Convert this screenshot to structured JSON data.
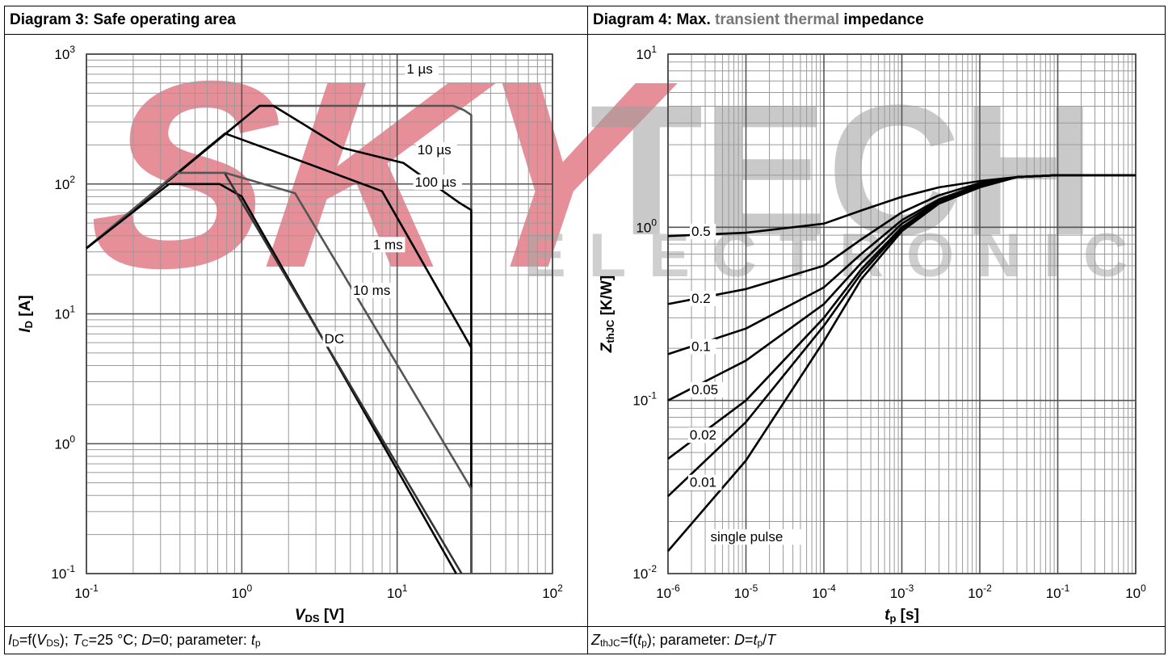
{
  "left_panel": {
    "title": "Diagram 3: Safe operating area",
    "footer": {
      "y_sym": "I",
      "y_sub": "D",
      "eq": "=f(",
      "x_sym": "V",
      "x_sub": "DS",
      "rest1": "); ",
      "t_sym": "T",
      "t_sub": "C",
      "rest2": "=25 °C; ",
      "d_sym": "D",
      "rest3": "=0; parameter: ",
      "p_sym": "t",
      "p_sub": "p"
    }
  },
  "right_panel": {
    "title_part1": "Diagram 4: Max. ",
    "title_part2": "transient thermal",
    "title_part3": " impedance",
    "footer": {
      "z_sym": "Z",
      "z_sub": "thJC",
      "eq": "=f(",
      "t_sym": "t",
      "t_sub": "p",
      "rest1": "); parameter: ",
      "d_sym": "D",
      "eq2": "=",
      "t2_sym": "t",
      "t2_sub": "p",
      "slash": "/",
      "T_sym": "T"
    }
  },
  "watermark": {
    "word1": "SKY",
    "word2": "TECH",
    "word3": "ELECTRONIC"
  },
  "chart_data": [
    {
      "type": "line",
      "title": "Diagram 3: Safe operating area",
      "xscale": "log",
      "yscale": "log",
      "xlim": [
        0.1,
        100
      ],
      "ylim": [
        0.1,
        1000
      ],
      "xlabel_sym": "V",
      "xlabel_sub": "DS",
      "xlabel_unit": " [V]",
      "ylabel_sym": "I",
      "ylabel_sub": "D",
      "ylabel_unit": " [A]",
      "xticks": [
        0.1,
        1,
        10,
        100
      ],
      "xtick_labels": [
        {
          "base": "10",
          "exp": "-1"
        },
        {
          "base": "10",
          "exp": "0"
        },
        {
          "base": "10",
          "exp": "1"
        },
        {
          "base": "10",
          "exp": "2"
        }
      ],
      "yticks": [
        0.1,
        1,
        10,
        100,
        1000
      ],
      "ytick_labels": [
        {
          "base": "10",
          "exp": "-1"
        },
        {
          "base": "10",
          "exp": "0"
        },
        {
          "base": "10",
          "exp": "1"
        },
        {
          "base": "10",
          "exp": "2"
        },
        {
          "base": "10",
          "exp": "3"
        }
      ],
      "grid": true,
      "series": [
        {
          "name": "1 µs",
          "color": "#555555",
          "label_at": [
            11.5,
            720
          ],
          "points": [
            [
              0.1,
              32
            ],
            [
              1.3,
              400
            ],
            [
              23,
              400
            ],
            [
              27,
              370
            ],
            [
              30,
              340
            ],
            [
              30,
              0.1
            ]
          ]
        },
        {
          "name": "10 µs",
          "color": "#000000",
          "label_at": [
            13.5,
            172
          ],
          "points": [
            [
              0.1,
              32
            ],
            [
              1.3,
              400
            ],
            [
              1.6,
              400
            ],
            [
              4.4,
              190
            ],
            [
              11,
              145
            ],
            [
              25,
              72
            ],
            [
              30,
              63
            ],
            [
              30,
              0.1
            ]
          ]
        },
        {
          "name": "100 µs",
          "color": "#000000",
          "label_at": [
            13,
            97
          ],
          "points": [
            [
              0.1,
              32
            ],
            [
              0.78,
              245
            ],
            [
              2.6,
              145
            ],
            [
              8,
              88
            ],
            [
              30,
              5.5
            ],
            [
              30,
              0.1
            ]
          ]
        },
        {
          "name": "1 ms",
          "color": "#555555",
          "label_at": [
            7,
            32
          ],
          "points": [
            [
              0.1,
              32
            ],
            [
              0.38,
              122
            ],
            [
              0.78,
              122
            ],
            [
              2.2,
              85
            ],
            [
              30,
              0.45
            ],
            [
              30,
              0.1
            ]
          ]
        },
        {
          "name": "10 ms",
          "color": "#000000",
          "label_at": [
            5.2,
            14.2
          ],
          "points": [
            [
              0.1,
              32
            ],
            [
              0.34,
              100
            ],
            [
              0.72,
              100
            ],
            [
              1.0,
              80
            ],
            [
              24,
              0.1
            ]
          ]
        },
        {
          "name": "DC",
          "color": "#333333",
          "label_at": [
            3.4,
            6
          ],
          "points": [
            [
              0.78,
              120
            ],
            [
              26,
              0.1
            ]
          ]
        }
      ]
    },
    {
      "type": "line",
      "title": "Diagram 4: Max. transient thermal impedance",
      "xscale": "log",
      "yscale": "log",
      "xlim": [
        1e-06,
        1
      ],
      "ylim": [
        0.01,
        10
      ],
      "xlabel_sym": "t",
      "xlabel_sub": "p",
      "xlabel_unit": " [s]",
      "ylabel_sym": "Z",
      "ylabel_sub": "thJC",
      "ylabel_unit": " [K/W]",
      "xticks": [
        1e-06,
        1e-05,
        0.0001,
        0.001,
        0.01,
        0.1,
        1
      ],
      "xtick_labels": [
        {
          "base": "10",
          "exp": "-6"
        },
        {
          "base": "10",
          "exp": "-5"
        },
        {
          "base": "10",
          "exp": "-4"
        },
        {
          "base": "10",
          "exp": "-3"
        },
        {
          "base": "10",
          "exp": "-2"
        },
        {
          "base": "10",
          "exp": "-1"
        },
        {
          "base": "10",
          "exp": "0"
        }
      ],
      "yticks": [
        0.01,
        0.1,
        1,
        10
      ],
      "ytick_labels": [
        {
          "base": "10",
          "exp": "-2"
        },
        {
          "base": "10",
          "exp": "-1"
        },
        {
          "base": "10",
          "exp": "0"
        },
        {
          "base": "10",
          "exp": "1"
        }
      ],
      "grid": true,
      "series": [
        {
          "name": "0.5",
          "color": "#000000",
          "label_at": [
            2e-06,
            0.9
          ],
          "points": [
            [
              1e-06,
              0.89
            ],
            [
              1e-05,
              0.93
            ],
            [
              0.0001,
              1.05
            ],
            [
              0.0003,
              1.25
            ],
            [
              0.001,
              1.5
            ],
            [
              0.003,
              1.7
            ],
            [
              0.01,
              1.85
            ],
            [
              0.03,
              1.95
            ],
            [
              0.1,
              2.0
            ],
            [
              1,
              2.0
            ]
          ]
        },
        {
          "name": "0.2",
          "color": "#000000",
          "label_at": [
            2e-06,
            0.37
          ],
          "points": [
            [
              1e-06,
              0.36
            ],
            [
              1e-05,
              0.44
            ],
            [
              0.0001,
              0.6
            ],
            [
              0.0003,
              0.85
            ],
            [
              0.001,
              1.22
            ],
            [
              0.003,
              1.53
            ],
            [
              0.01,
              1.8
            ],
            [
              0.03,
              1.95
            ],
            [
              0.1,
              2.0
            ],
            [
              1,
              2.0
            ]
          ]
        },
        {
          "name": "0.1",
          "color": "#000000",
          "label_at": [
            2e-06,
            0.195
          ],
          "points": [
            [
              1e-06,
              0.185
            ],
            [
              1e-05,
              0.26
            ],
            [
              0.0001,
              0.45
            ],
            [
              0.0003,
              0.7
            ],
            [
              0.001,
              1.1
            ],
            [
              0.003,
              1.45
            ],
            [
              0.01,
              1.77
            ],
            [
              0.03,
              1.95
            ],
            [
              0.1,
              2.0
            ],
            [
              1,
              2.0
            ]
          ]
        },
        {
          "name": "0.05",
          "color": "#000000",
          "label_at": [
            2e-06,
            0.11
          ],
          "points": [
            [
              1e-06,
              0.1
            ],
            [
              1e-05,
              0.17
            ],
            [
              0.0001,
              0.36
            ],
            [
              0.0003,
              0.62
            ],
            [
              0.001,
              1.05
            ],
            [
              0.003,
              1.42
            ],
            [
              0.01,
              1.75
            ],
            [
              0.03,
              1.95
            ],
            [
              0.1,
              2.0
            ],
            [
              1,
              2.0
            ]
          ]
        },
        {
          "name": "0.02",
          "color": "#000000",
          "label_at": [
            1.9e-06,
            0.06
          ],
          "points": [
            [
              1e-06,
              0.046
            ],
            [
              1e-05,
              0.1
            ],
            [
              0.0001,
              0.3
            ],
            [
              0.0003,
              0.57
            ],
            [
              0.001,
              1.0
            ],
            [
              0.003,
              1.4
            ],
            [
              0.01,
              1.73
            ],
            [
              0.03,
              1.95
            ],
            [
              0.1,
              2.0
            ],
            [
              1,
              2.0
            ]
          ]
        },
        {
          "name": "0.01",
          "color": "#000000",
          "label_at": [
            1.9e-06,
            0.032
          ],
          "points": [
            [
              1e-06,
              0.028
            ],
            [
              1e-05,
              0.075
            ],
            [
              0.0001,
              0.27
            ],
            [
              0.0003,
              0.54
            ],
            [
              0.001,
              0.98
            ],
            [
              0.003,
              1.38
            ],
            [
              0.01,
              1.72
            ],
            [
              0.03,
              1.95
            ],
            [
              0.1,
              2.0
            ],
            [
              1,
              2.0
            ]
          ]
        },
        {
          "name": "single pulse",
          "color": "#000000",
          "label_at": [
            3.5e-06,
            0.0155
          ],
          "points": [
            [
              1e-06,
              0.0135
            ],
            [
              1e-05,
              0.045
            ],
            [
              0.0001,
              0.22
            ],
            [
              0.0003,
              0.5
            ],
            [
              0.001,
              0.95
            ],
            [
              0.003,
              1.37
            ],
            [
              0.01,
              1.7
            ],
            [
              0.03,
              1.95
            ],
            [
              0.1,
              2.0
            ],
            [
              1,
              2.0
            ]
          ]
        }
      ]
    }
  ]
}
